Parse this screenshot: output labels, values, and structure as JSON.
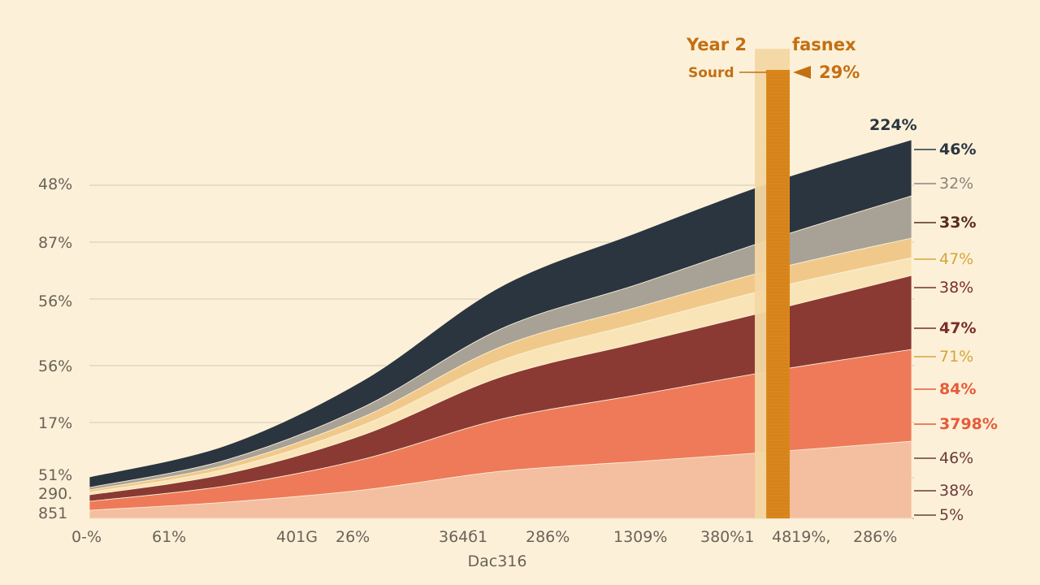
{
  "chart_data": {
    "type": "area",
    "stacked": true,
    "grid": "horizontal",
    "y_tick_labels": [
      "48%",
      "87%",
      "56%",
      "56%",
      "17%",
      "51%",
      "290.",
      "851"
    ],
    "x_tick_labels": [
      "0-%",
      "61%",
      "401G",
      "26%",
      "364б1",
      "286%",
      "1309%",
      "380%1",
      "4819%,",
      "286%"
    ],
    "x_axis_label": "Dac316",
    "header": {
      "title_left": "Year 2",
      "title_right": "fasnex",
      "source_label": "Sourd",
      "highlight_value": "29%"
    },
    "top_total_label": "224%",
    "right_labels": [
      "46%",
      "32%",
      "33%",
      "47%",
      "38%",
      "47%",
      "71%",
      "84%",
      "3798%",
      "46%",
      "38%",
      "5%"
    ],
    "series": [
      {
        "color": "#f4bea0",
        "values": [
          10,
          20,
          35,
          58,
          70,
          82,
          95
        ]
      },
      {
        "color": "#ee7a5a",
        "values": [
          11,
          20,
          38,
          64,
          82,
          100,
          113
        ]
      },
      {
        "color": "#8a3a33",
        "values": [
          8,
          15,
          30,
          52,
          64,
          75,
          91
        ]
      },
      {
        "color": "#f9e4b8",
        "values": [
          3,
          6,
          12,
          20,
          24,
          27,
          22
        ]
      },
      {
        "color": "#f0c98a",
        "values": [
          3,
          5,
          10,
          17,
          20,
          23,
          24
        ]
      },
      {
        "color": "#a8a196",
        "values": [
          3,
          6,
          12,
          22,
          28,
          38,
          52
        ]
      },
      {
        "color": "#2a3540",
        "values": [
          13,
          18,
          33,
          52,
          64,
          70,
          69
        ]
      }
    ],
    "highlight_color": "#d9871c"
  }
}
